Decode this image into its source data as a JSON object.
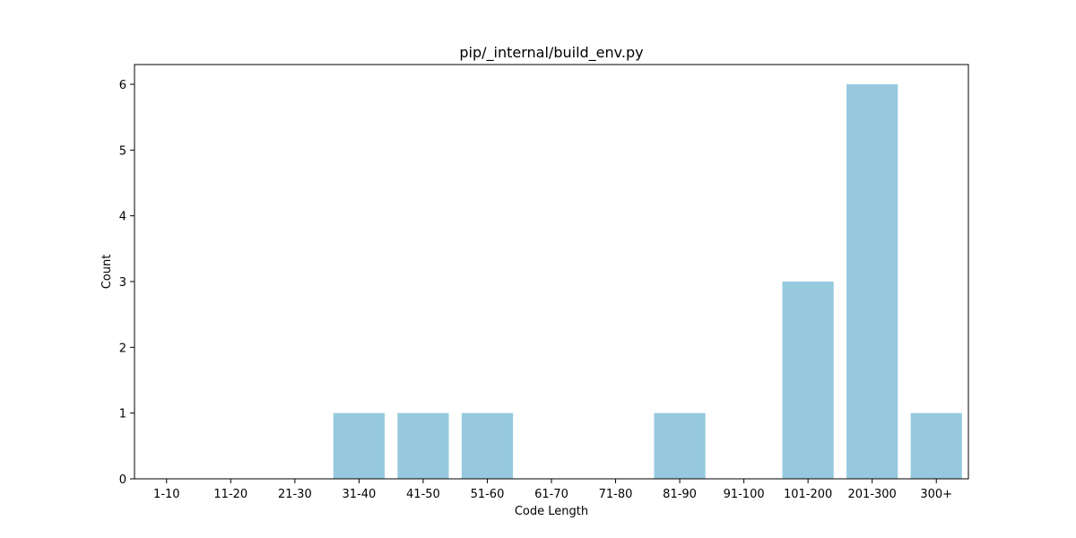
{
  "chart_data": {
    "type": "bar",
    "title": "pip/_internal/build_env.py",
    "xlabel": "Code Length",
    "ylabel": "Count",
    "categories": [
      "1-10",
      "11-20",
      "21-30",
      "31-40",
      "41-50",
      "51-60",
      "61-70",
      "71-80",
      "81-90",
      "91-100",
      "101-200",
      "201-300",
      "300+"
    ],
    "values": [
      0,
      0,
      0,
      1,
      1,
      1,
      0,
      0,
      1,
      0,
      3,
      6,
      1
    ],
    "ylim": [
      0,
      6.3
    ],
    "yticks": [
      0,
      1,
      2,
      3,
      4,
      5,
      6
    ],
    "grid": false,
    "legend": "none",
    "bar_color": "#96c9de"
  }
}
